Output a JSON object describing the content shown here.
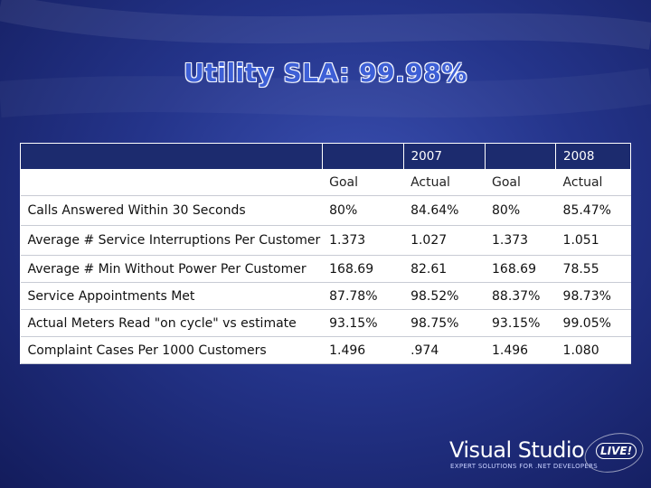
{
  "slide": {
    "title": "Utility SLA: 99.98%"
  },
  "table": {
    "years": [
      "2007",
      "2008"
    ],
    "subheaders": [
      "Goal",
      "Actual",
      "Goal",
      "Actual"
    ],
    "rows": [
      {
        "label": "Calls Answered Within 30 Seconds",
        "values": [
          "80%",
          "84.64%",
          "80%",
          "85.47%"
        ]
      },
      {
        "label": "Average # Service Interruptions Per Customer",
        "values": [
          "1.373",
          "1.027",
          "1.373",
          "1.051"
        ]
      },
      {
        "label": "Average # Min Without Power Per Customer",
        "values": [
          "168.69",
          "82.61",
          "168.69",
          "78.55"
        ]
      },
      {
        "label": "Service Appointments Met",
        "values": [
          "87.78%",
          "98.52%",
          "88.37%",
          "98.73%"
        ]
      },
      {
        "label": "Actual Meters Read \"on cycle\" vs estimate",
        "values": [
          "93.15%",
          "98.75%",
          "93.15%",
          "99.05%"
        ]
      },
      {
        "label": "Complaint Cases Per 1000 Customers",
        "values": [
          "1.496",
          ".974",
          "1.496",
          "1.080"
        ]
      }
    ]
  },
  "logo": {
    "name": "Visual Studio",
    "badge": "LIVE!",
    "tagline": "EXPERT SOLUTIONS FOR .NET DEVELOPERS"
  }
}
